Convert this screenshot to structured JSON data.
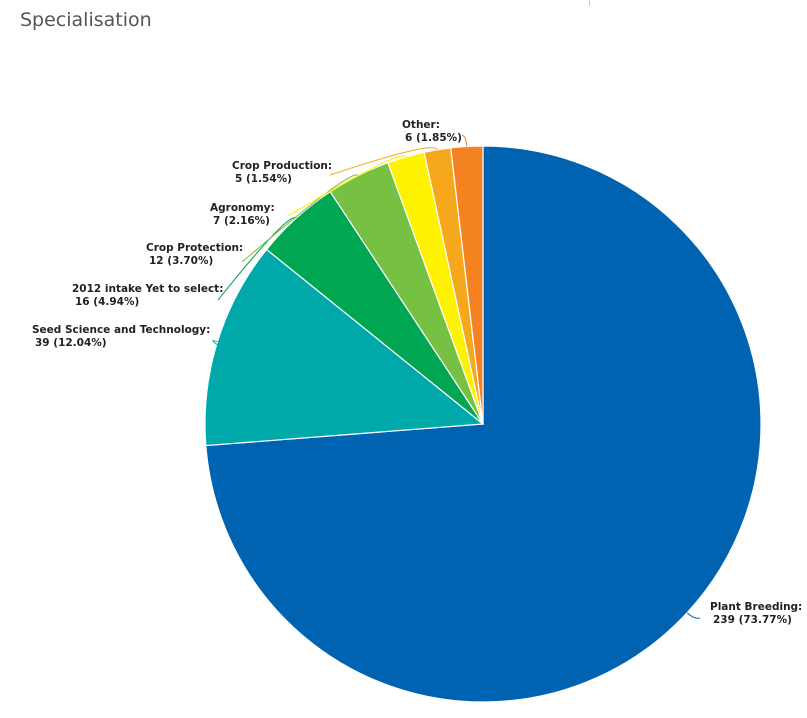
{
  "chart_data": {
    "type": "pie",
    "title": "Specialisation",
    "slices": [
      {
        "name": "Plant Breeding",
        "value": 239,
        "percent": "73.77%",
        "color": "#0063b1"
      },
      {
        "name": "Seed Science and Technology",
        "value": 39,
        "percent": "12.04%",
        "color": "#00a9a9"
      },
      {
        "name": "2012 intake Yet to select",
        "value": 16,
        "percent": "4.94%",
        "color": "#00a651"
      },
      {
        "name": "Crop Protection",
        "value": 12,
        "percent": "3.70%",
        "color": "#76c043"
      },
      {
        "name": "Agronomy",
        "value": 7,
        "percent": "2.16%",
        "color": "#fff200"
      },
      {
        "name": "Crop Production",
        "value": 5,
        "percent": "1.54%",
        "color": "#f6a81c"
      },
      {
        "name": "Other",
        "value": 6,
        "percent": "1.85%",
        "color": "#f58220"
      }
    ]
  }
}
